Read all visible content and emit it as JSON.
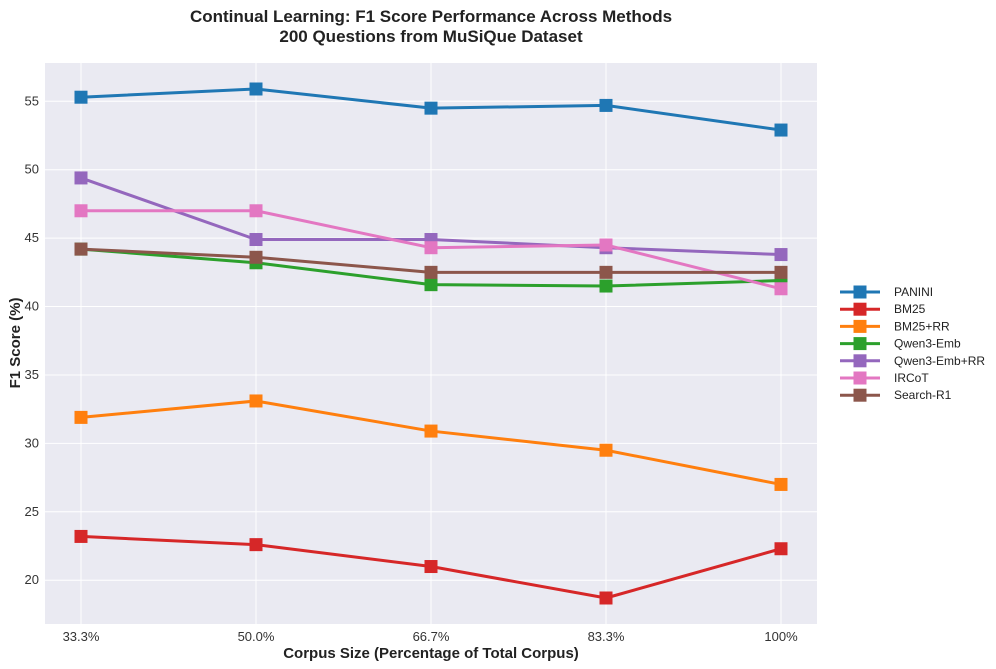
{
  "chart_data": {
    "type": "line",
    "title_line1": "Continual Learning: F1 Score Performance Across Methods",
    "title_line2": "200 Questions from MuSiQue Dataset",
    "xlabel": "Corpus Size (Percentage of Total Corpus)",
    "ylabel": "F1 Score (%)",
    "categories": [
      "33.3%",
      "50.0%",
      "66.7%",
      "83.3%",
      "100%"
    ],
    "ylim": [
      16.8,
      57.8
    ],
    "yticks": [
      20,
      25,
      30,
      35,
      40,
      45,
      50,
      55
    ],
    "grid": true,
    "legend_position": "right",
    "series": [
      {
        "name": "PANINI",
        "color": "#1f77b4",
        "values": [
          55.3,
          55.9,
          54.5,
          54.7,
          52.9
        ]
      },
      {
        "name": "BM25",
        "color": "#d62728",
        "values": [
          23.2,
          22.6,
          21.0,
          18.7,
          22.3
        ]
      },
      {
        "name": "BM25+RR",
        "color": "#ff7f0e",
        "values": [
          31.9,
          33.1,
          30.9,
          29.5,
          27.0
        ]
      },
      {
        "name": "Qwen3-Emb",
        "color": "#2ca02c",
        "values": [
          44.2,
          43.2,
          41.6,
          41.5,
          41.9
        ]
      },
      {
        "name": "Qwen3-Emb+RR",
        "color": "#9467bd",
        "values": [
          49.4,
          44.9,
          44.9,
          44.3,
          43.8
        ]
      },
      {
        "name": "IRCoT",
        "color": "#e377c2",
        "values": [
          47.0,
          47.0,
          44.3,
          44.5,
          41.3
        ]
      },
      {
        "name": "Search-R1",
        "color": "#8c564b",
        "values": [
          44.2,
          43.6,
          42.5,
          42.5,
          42.5
        ]
      }
    ]
  }
}
